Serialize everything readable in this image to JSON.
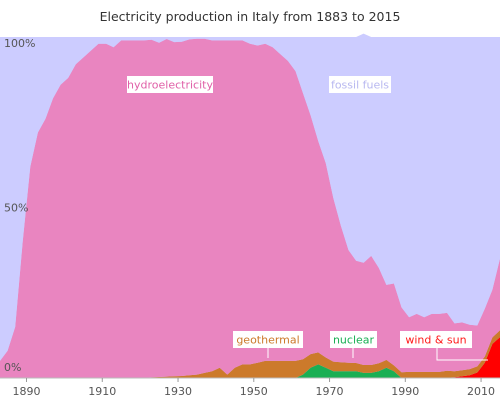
{
  "chart_data": {
    "type": "area",
    "title": "Electricity production in Italy from 1883 to 2015",
    "xlabel": "",
    "ylabel": "",
    "xlim": [
      1883,
      2015
    ],
    "ylim": [
      0,
      100
    ],
    "x_ticks": [
      "1890",
      "1910",
      "1930",
      "1950",
      "1970",
      "1990",
      "2010"
    ],
    "y_ticks": [
      "100%",
      "50%",
      "0%"
    ],
    "grid": false,
    "legend": "inline labels",
    "x": [
      1883,
      1885,
      1887,
      1889,
      1891,
      1893,
      1895,
      1897,
      1899,
      1901,
      1903,
      1905,
      1907,
      1909,
      1911,
      1913,
      1915,
      1917,
      1919,
      1921,
      1923,
      1925,
      1927,
      1929,
      1931,
      1933,
      1935,
      1937,
      1939,
      1941,
      1943,
      1945,
      1947,
      1949,
      1951,
      1953,
      1955,
      1957,
      1959,
      1961,
      1963,
      1965,
      1967,
      1969,
      1971,
      1973,
      1975,
      1977,
      1979,
      1981,
      1983,
      1985,
      1987,
      1989,
      1991,
      1993,
      1995,
      1997,
      1999,
      2001,
      2003,
      2005,
      2007,
      2009,
      2011,
      2013,
      2015
    ],
    "series": [
      {
        "name": "wind & sun",
        "color": "#ff0000",
        "values": [
          0,
          0,
          0,
          0,
          0,
          0,
          0,
          0,
          0,
          0,
          0,
          0,
          0,
          0,
          0,
          0,
          0,
          0,
          0,
          0,
          0,
          0,
          0,
          0,
          0,
          0,
          0,
          0,
          0,
          0,
          0,
          0,
          0,
          0,
          0,
          0,
          0,
          0,
          0,
          0,
          0,
          0,
          0,
          0,
          0,
          0,
          0,
          0,
          0,
          0,
          0,
          0,
          0,
          0,
          0,
          0,
          0,
          0,
          0,
          0.1,
          0.2,
          0.5,
          0.8,
          1.6,
          4.5,
          10,
          12
        ]
      },
      {
        "name": "nuclear",
        "color": "#1aaf54",
        "values": [
          0,
          0,
          0,
          0,
          0,
          0,
          0,
          0,
          0,
          0,
          0,
          0,
          0,
          0,
          0,
          0,
          0,
          0,
          0,
          0,
          0,
          0,
          0,
          0,
          0,
          0,
          0,
          0,
          0,
          0,
          0,
          0,
          0,
          0,
          0,
          0,
          0,
          0,
          0,
          0,
          1,
          3,
          4,
          3,
          2,
          2,
          2,
          2,
          1.5,
          1.5,
          2,
          3,
          2,
          0,
          0,
          0,
          0,
          0,
          0,
          0,
          0,
          0,
          0,
          0,
          0,
          0,
          0
        ]
      },
      {
        "name": "geothermal",
        "color": "#cc7a2b",
        "values": [
          0,
          0,
          0,
          0,
          0,
          0,
          0,
          0,
          0,
          0,
          0,
          0,
          0,
          0,
          0,
          0,
          0,
          0,
          0,
          0,
          0.2,
          0.3,
          0.4,
          0.5,
          0.6,
          0.8,
          1,
          1.5,
          2,
          3,
          1,
          3,
          4,
          4,
          4.5,
          5,
          5,
          5,
          5,
          5,
          4.5,
          4,
          3.5,
          3,
          2.8,
          2.6,
          2.5,
          2.4,
          2.3,
          2.3,
          2.3,
          2.3,
          1.7,
          1.7,
          1.8,
          1.8,
          1.8,
          1.8,
          1.8,
          2,
          1.8,
          1.8,
          1.8,
          1.8,
          1.8,
          1.9,
          2
        ]
      },
      {
        "name": "hydroelectricity",
        "color": "#e985c0",
        "values": [
          5,
          8,
          15,
          40,
          62,
          72,
          76,
          82,
          86,
          88,
          92,
          94,
          96,
          98,
          98,
          97,
          99,
          99,
          99,
          99,
          99,
          98,
          99,
          98,
          98,
          98.5,
          98.5,
          98,
          97,
          96,
          98,
          96,
          95,
          94,
          93,
          93,
          92,
          90,
          88,
          85,
          78,
          70,
          62,
          57,
          48,
          40,
          33,
          30,
          30,
          32,
          28,
          22,
          24,
          19,
          16,
          17,
          16,
          17,
          17,
          17,
          14,
          14,
          13,
          12,
          14,
          14,
          21
        ]
      },
      {
        "name": "fossil fuels",
        "color": "#ccccff",
        "values": [
          95,
          92,
          85,
          60,
          38,
          28,
          24,
          18,
          14,
          12,
          8,
          6,
          4,
          2,
          2,
          3,
          1,
          1,
          1,
          1,
          0.8,
          1.7,
          0.6,
          1.5,
          1.4,
          0.7,
          0.5,
          0.5,
          1,
          1,
          1,
          1,
          1,
          2,
          2.5,
          2,
          3,
          5,
          7,
          10,
          16.5,
          23,
          30.5,
          37,
          47.2,
          55.4,
          62.5,
          65.6,
          67.2,
          64.2,
          67.7,
          71.7,
          72.3,
          79.3,
          82.2,
          81.2,
          82.2,
          81.2,
          81.2,
          80.9,
          84,
          83.7,
          84.4,
          84.6,
          79.7,
          74.1,
          65
        ]
      }
    ],
    "annotations": {
      "hydroelectricity": "hydroelectricity",
      "fossil_fuels": "fossil fuels",
      "geothermal": "geothermal",
      "nuclear": "nuclear",
      "wind_and_sun": "wind & sun"
    },
    "colors": {
      "background": "#ccccff",
      "axis_text": "#555555"
    }
  }
}
